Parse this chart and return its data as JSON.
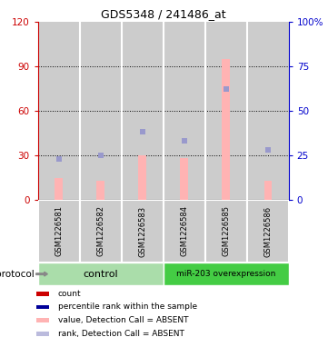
{
  "title": "GDS5348 / 241486_at",
  "samples": [
    "GSM1226581",
    "GSM1226582",
    "GSM1226583",
    "GSM1226584",
    "GSM1226585",
    "GSM1226586"
  ],
  "bar_values": [
    15,
    13,
    30,
    28,
    95,
    13
  ],
  "rank_values": [
    23,
    25,
    38,
    33,
    62,
    28
  ],
  "left_ylim": [
    0,
    120
  ],
  "right_ylim": [
    0,
    100
  ],
  "left_yticks": [
    0,
    30,
    60,
    90,
    120
  ],
  "right_yticks": [
    0,
    25,
    50,
    75,
    100
  ],
  "right_yticklabels": [
    "0",
    "25",
    "50",
    "75",
    "100%"
  ],
  "left_yticklabels": [
    "0",
    "30",
    "60",
    "90",
    "120"
  ],
  "bar_color": "#FFB3B3",
  "rank_color": "#9999CC",
  "count_color": "#CC0000",
  "percentile_color": "#000099",
  "control_color": "#AADDAA",
  "overexpression_color": "#44CC44",
  "control_label": "control",
  "overexpression_label": "miR-203 overexpression",
  "protocol_label": "protocol",
  "bg_color": "#CCCCCC",
  "legend_items": [
    {
      "label": "count",
      "color": "#CC0000"
    },
    {
      "label": "percentile rank within the sample",
      "color": "#000099"
    },
    {
      "label": "value, Detection Call = ABSENT",
      "color": "#FFB3B3"
    },
    {
      "label": "rank, Detection Call = ABSENT",
      "color": "#BBBBDD"
    }
  ]
}
